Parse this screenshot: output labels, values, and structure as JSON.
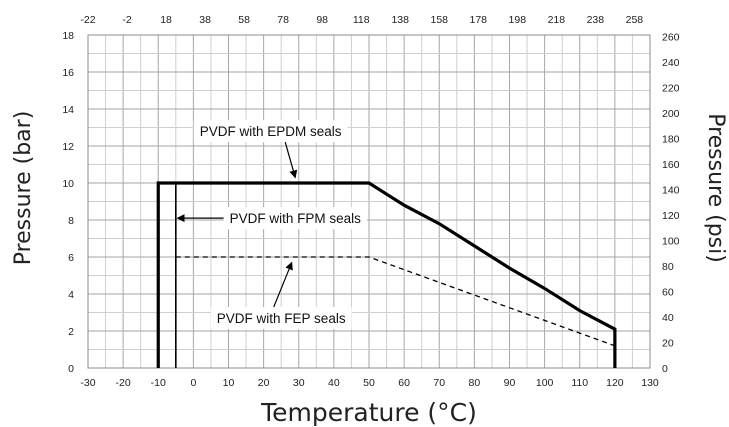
{
  "chart_data": {
    "type": "line",
    "xlabel": "Temperature (°C)",
    "ylabel": "Pressure (bar)",
    "y2label": "Pressure (psi)",
    "xlim": [
      -30,
      130
    ],
    "ylim": [
      0,
      18
    ],
    "x2lim": [
      -22,
      266
    ],
    "y2lim": [
      0,
      261
    ],
    "x_ticks": [
      -30,
      -20,
      -10,
      0,
      10,
      20,
      30,
      40,
      50,
      60,
      70,
      80,
      90,
      100,
      110,
      120,
      130
    ],
    "y_ticks": [
      0,
      2,
      4,
      6,
      8,
      10,
      12,
      14,
      16,
      18
    ],
    "x2_ticks": [
      -22,
      -2,
      18,
      38,
      58,
      78,
      98,
      118,
      138,
      158,
      178,
      198,
      218,
      238,
      258
    ],
    "y2_ticks": [
      0,
      20,
      40,
      60,
      80,
      100,
      120,
      140,
      160,
      180,
      200,
      220,
      240,
      260
    ],
    "grid": true,
    "series": [
      {
        "name": "PVDF with EPDM seals",
        "style": "thick-solid",
        "color": "#000000",
        "x": [
          -10,
          -10,
          50,
          60,
          70,
          80,
          90,
          100,
          110,
          120,
          120
        ],
        "y": [
          0,
          10,
          10,
          8.8,
          7.8,
          6.6,
          5.4,
          4.3,
          3.1,
          2.1,
          0
        ]
      },
      {
        "name": "PVDF with FPM seals",
        "style": "thin-solid",
        "color": "#000000",
        "x": [
          -5,
          -5
        ],
        "y": [
          0,
          10
        ]
      },
      {
        "name": "PVDF with FEP seals",
        "style": "dashed",
        "color": "#000000",
        "x": [
          -5,
          50,
          120
        ],
        "y": [
          6,
          6,
          1.2
        ]
      }
    ],
    "annotations": [
      {
        "text": "PVDF with EPDM seals",
        "x": 22,
        "y": 12.8,
        "arrow_to": [
          29,
          10.3
        ]
      },
      {
        "text": "PVDF with FPM seals",
        "x": 29,
        "y": 8.1,
        "arrow_to": [
          -4.5,
          8.1
        ]
      },
      {
        "text": "PVDF with FEP seals",
        "x": 25,
        "y": 2.7,
        "arrow_to": [
          28,
          5.7
        ]
      }
    ]
  }
}
